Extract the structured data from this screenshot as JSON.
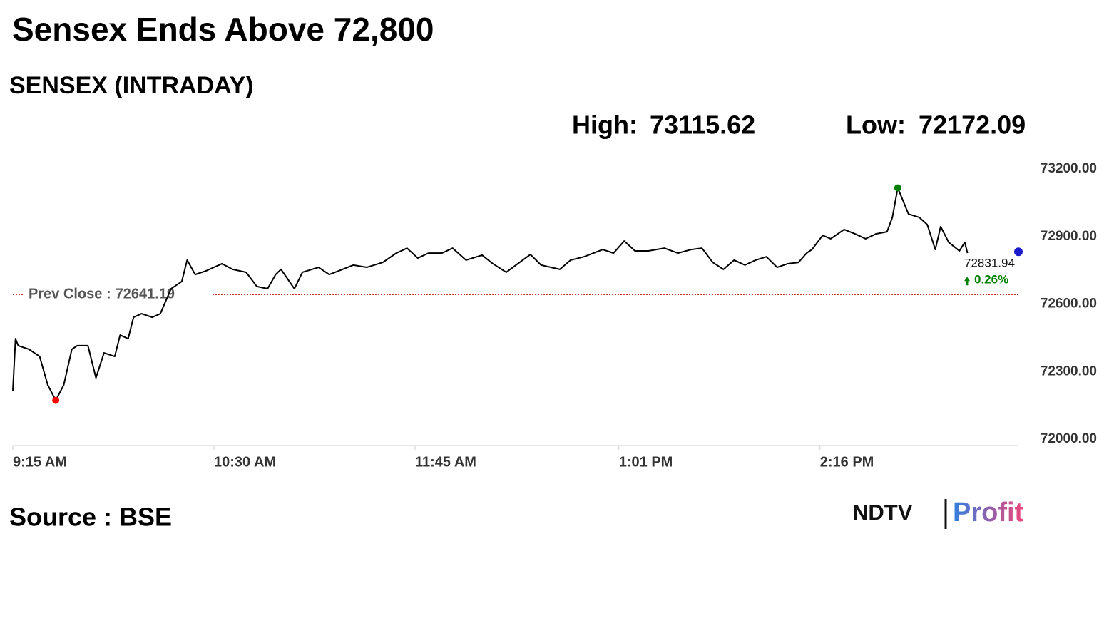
{
  "chart_data": {
    "type": "line",
    "title": "Sensex Ends Above 72,800",
    "subtitle": "SENSEX (INTRADAY)",
    "high_label": "High:",
    "high": 73115.62,
    "low_label": "Low:",
    "low": 72172.09,
    "prev_close_label": "Prev Close :",
    "prev_close": 72641.19,
    "close": 72831.94,
    "close_x": 930,
    "change": 0.26,
    "change_label": "0.26%",
    "source": "Source : BSE",
    "logo": [
      "NDTV",
      "Profit"
    ],
    "xlim": [
      555,
      930
    ],
    "xticks": [
      {
        "value": 555,
        "label": "9:15 AM"
      },
      {
        "value": 630,
        "label": "10:30 AM"
      },
      {
        "value": 705,
        "label": "11:45 AM"
      },
      {
        "value": 781,
        "label": "1:01 PM"
      },
      {
        "value": 856,
        "label": "2:16 PM"
      }
    ],
    "ylim": [
      72000,
      73200
    ],
    "yticks": [
      {
        "value": 72000,
        "label": "72000.00"
      },
      {
        "value": 72300,
        "label": "72300.00"
      },
      {
        "value": 72600,
        "label": "72600.00"
      },
      {
        "value": 72900,
        "label": "72900.00"
      },
      {
        "value": 73200,
        "label": "73200.00"
      }
    ],
    "series": [
      {
        "name": "SENSEX",
        "color": "#000000",
        "x": [
          555,
          556,
          557,
          561,
          565,
          568,
          571,
          574,
          577,
          579,
          583,
          586,
          589,
          593,
          595,
          598,
          600,
          603,
          607,
          610,
          614,
          618,
          620,
          623,
          627,
          630,
          633,
          637,
          642,
          646,
          650,
          653,
          655,
          660,
          663,
          669,
          673,
          678,
          682,
          687,
          693,
          698,
          702,
          706,
          710,
          715,
          719,
          724,
          730,
          734,
          739,
          744,
          748,
          752,
          759,
          763,
          768,
          775,
          779,
          783,
          787,
          792,
          798,
          803,
          808,
          812,
          816,
          820,
          824,
          828,
          832,
          836,
          840,
          844,
          848,
          851,
          853,
          857,
          860,
          865,
          869,
          873,
          877,
          881,
          883,
          885,
          889,
          893,
          896,
          899,
          901,
          904,
          908,
          910,
          911
        ],
        "values": [
          72215,
          72446,
          72415,
          72399,
          72367,
          72241,
          72172.09,
          72241,
          72399,
          72415,
          72415,
          72272,
          72383,
          72367,
          72462,
          72446,
          72541,
          72557,
          72541,
          72557,
          72668,
          72700,
          72795,
          72731,
          72747,
          72763,
          72779,
          72754,
          72741,
          72678,
          72668,
          72731,
          72754,
          72668,
          72741,
          72763,
          72731,
          72754,
          72773,
          72763,
          72785,
          72826,
          72848,
          72804,
          72826,
          72826,
          72848,
          72795,
          72817,
          72779,
          72741,
          72785,
          72820,
          72773,
          72754,
          72795,
          72810,
          72842,
          72826,
          72880,
          72836,
          72836,
          72848,
          72826,
          72842,
          72848,
          72785,
          72754,
          72795,
          72773,
          72795,
          72810,
          72763,
          72779,
          72785,
          72826,
          72842,
          72905,
          72890,
          72931,
          72912,
          72890,
          72912,
          72921,
          72985,
          73115.62,
          73000,
          72985,
          72953,
          72842,
          72944,
          72874,
          72836,
          72874,
          72826
        ]
      }
    ]
  }
}
